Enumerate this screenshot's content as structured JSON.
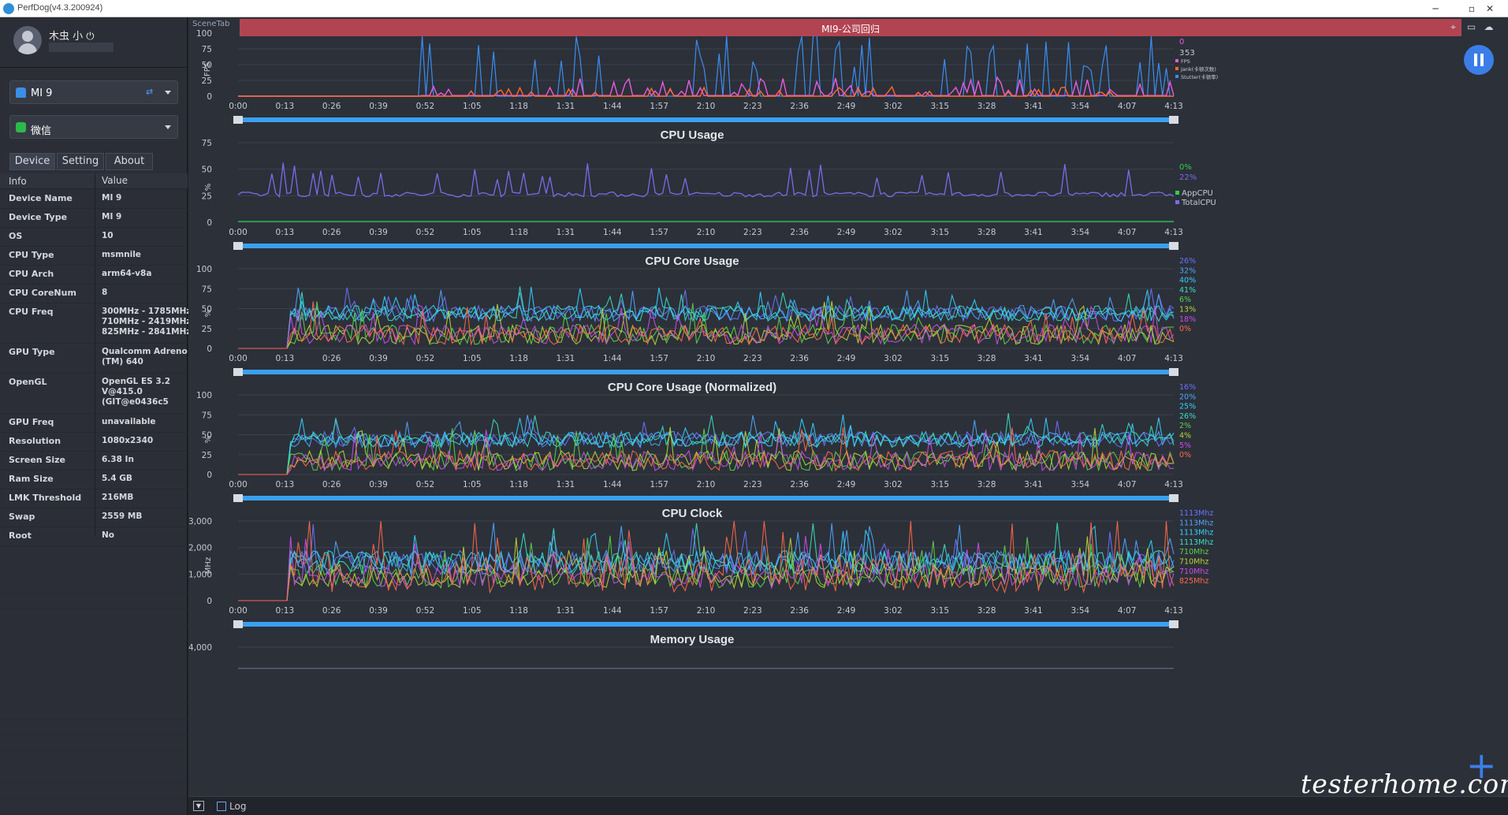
{
  "window": {
    "title": "PerfDog(v4.3.200924)",
    "controls": [
      "─",
      "▫",
      "✕"
    ]
  },
  "profile": {
    "username": "木虫 小 ⏻"
  },
  "device_select": {
    "label": "MI 9",
    "icon": "android-icon"
  },
  "app_select": {
    "label": "微信",
    "icon": "wechat-icon"
  },
  "tabs": [
    "Device",
    "Setting",
    "About"
  ],
  "info_table": {
    "headers": [
      "Info",
      "Value"
    ],
    "rows": [
      [
        "Device Name",
        "MI 9"
      ],
      [
        "Device Type",
        "MI 9"
      ],
      [
        "OS",
        "10"
      ],
      [
        "CPU Type",
        "msmnile"
      ],
      [
        "CPU Arch",
        "arm64-v8a"
      ],
      [
        "CPU CoreNum",
        "8"
      ],
      [
        "CPU Freq",
        "300MHz - 1785MHz\n710MHz - 2419MHz\n825MHz - 2841MHz"
      ],
      [
        "GPU Type",
        "Qualcomm Adreno\n(TM) 640"
      ],
      [
        "OpenGL",
        "OpenGL ES 3.2\nV@415.0\n(GIT@e0436c5"
      ],
      [
        "GPU Freq",
        "unavailable"
      ],
      [
        "Resolution",
        "1080x2340"
      ],
      [
        "Screen Size",
        "6.38 In"
      ],
      [
        "Ram Size",
        "5.4 GB"
      ],
      [
        "LMK Threshold",
        "216MB"
      ],
      [
        "Swap",
        "2559 MB"
      ],
      [
        "Root",
        "No"
      ]
    ]
  },
  "scene": {
    "tab_label": "SceneTab",
    "title": "MI9-公司回归"
  },
  "time_ticks": [
    "0:00",
    "0:13",
    "0:26",
    "0:39",
    "0:52",
    "1:05",
    "1:18",
    "1:31",
    "1:44",
    "1:57",
    "2:10",
    "2:23",
    "2:36",
    "2:49",
    "3:02",
    "3:15",
    "3:28",
    "3:41",
    "3:54",
    "4:07",
    "4:13"
  ],
  "chart_data": [
    {
      "type": "line",
      "title": "",
      "ylabel": "FPS",
      "yticks": [
        "100",
        "75",
        "50",
        "25",
        "0"
      ],
      "ylim": [
        0,
        100
      ],
      "current_values": [
        "0",
        "3",
        "53"
      ],
      "legend": [
        "FPS",
        "Jank(卡顿次数)",
        "Stutter(卡顿率)"
      ],
      "colors": [
        "#e85be0",
        "#ff6a2a",
        "#3a8ef0"
      ]
    },
    {
      "type": "line",
      "title": "CPU Usage",
      "ylabel": "%",
      "yticks": [
        "75",
        "50",
        "25",
        "0"
      ],
      "ylim": [
        0,
        75
      ],
      "current_values": [
        "0%",
        "22%"
      ],
      "legend": [
        "AppCPU",
        "TotalCPU"
      ],
      "colors": [
        "#2fd04a",
        "#7a6be8"
      ]
    },
    {
      "type": "line",
      "title": "CPU Core Usage",
      "ylabel": "%",
      "yticks": [
        "100",
        "75",
        "50",
        "25",
        "0"
      ],
      "ylim": [
        0,
        100
      ],
      "current_values": [
        "26%",
        "32%",
        "40%",
        "41%",
        "6%",
        "13%",
        "18%",
        "0%"
      ],
      "colors": [
        "#6b73ff",
        "#4fa6ff",
        "#33d3ff",
        "#3ae0c0",
        "#5bd34b",
        "#b8d636",
        "#c94fe8",
        "#ff6a4a"
      ]
    },
    {
      "type": "line",
      "title": "CPU Core Usage (Normalized)",
      "ylabel": "%",
      "yticks": [
        "100",
        "75",
        "50",
        "25",
        "0"
      ],
      "ylim": [
        0,
        100
      ],
      "current_values": [
        "16%",
        "20%",
        "25%",
        "26%",
        "2%",
        "4%",
        "5%",
        "0%"
      ],
      "colors": [
        "#6b73ff",
        "#4fa6ff",
        "#33d3ff",
        "#3ae0c0",
        "#5bd34b",
        "#b8d636",
        "#c94fe8",
        "#ff6a4a"
      ]
    },
    {
      "type": "line",
      "title": "CPU Clock",
      "ylabel": "MHz",
      "yticks": [
        "3,000",
        "2,000",
        "1,000",
        "0"
      ],
      "ylim": [
        0,
        3000
      ],
      "current_values": [
        "1113Mhz",
        "1113Mhz",
        "1113Mhz",
        "1113Mhz",
        "710Mhz",
        "710Mhz",
        "710Mhz",
        "825Mhz"
      ],
      "colors": [
        "#6b73ff",
        "#4fa6ff",
        "#33d3ff",
        "#3ae0c0",
        "#5bd34b",
        "#b8d636",
        "#c94fe8",
        "#ff6a4a"
      ]
    },
    {
      "type": "line",
      "title": "Memory Usage",
      "ylabel": "",
      "yticks": [
        "4,000"
      ]
    }
  ],
  "bottom": {
    "log_label": "Log"
  },
  "watermark": "testerhome.com"
}
